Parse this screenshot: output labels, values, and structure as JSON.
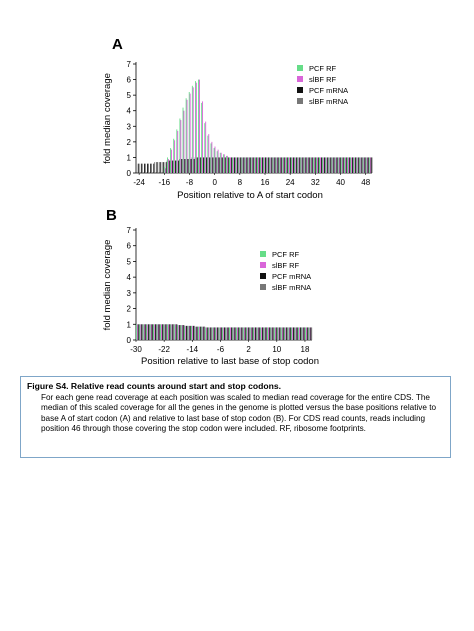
{
  "figure": {
    "caption_title": "Figure S4. Relative read counts around start and stop codons.",
    "caption_body": "For each gene read coverage at each position was scaled to median read coverage for the entire CDS. The median of this scaled coverage for all the genes in the genome is plotted versus the base positions relative to base A of start codon (A) and relative to last base of stop codon (B).  For CDS read counts, reads including position 46 through those covering the stop codon were included. RF, ribosome footprints."
  },
  "colors": {
    "pcf_rf": "#66dd88",
    "slbf_rf": "#d966d9",
    "pcf_mrna": "#111111",
    "slbf_mrna": "#777777"
  },
  "chart_data": [
    {
      "panel": "A",
      "type": "bar",
      "xlabel": "Position relative  to A of start codon",
      "ylabel": "fold median coverage",
      "ylim": [
        0,
        7
      ],
      "yticks": [
        0,
        1,
        2,
        3,
        4,
        5,
        6,
        7
      ],
      "x_start": -25,
      "x_end": 50,
      "x_step": 3,
      "xticks": [
        -24,
        -16,
        -8,
        0,
        8,
        16,
        24,
        32,
        40,
        48
      ],
      "legend_position": "top-right",
      "series": [
        {
          "name": "PCF RF",
          "values": [
            0,
            0,
            0,
            0,
            0,
            0,
            0,
            0,
            0,
            0.4,
            1.0,
            1.6,
            2.2,
            2.8,
            3.5,
            4.2,
            4.8,
            5.2,
            5.6,
            5.9,
            6.0,
            4.5,
            3.2,
            2.4,
            1.9,
            1.6,
            1.4,
            1.3,
            1.2,
            1.1,
            1.0,
            1.0,
            1.0,
            1.0,
            1.0,
            1.0,
            1.0,
            1.0,
            1.0,
            1.0,
            1.0,
            1.0,
            1.0,
            1.0,
            1.0,
            1.0,
            1.0,
            1.0,
            1.0,
            1.0,
            1.0,
            1.0,
            1.0,
            1.0,
            1.0,
            1.0,
            1.0,
            1.0,
            1.0,
            1.0,
            1.0,
            1.0,
            1.0,
            1.0,
            1.0,
            1.0,
            1.0,
            1.0,
            1.0,
            1.0,
            1.0,
            1.0,
            1.0,
            1.0,
            1.0,
            1.0
          ]
        },
        {
          "name": "slBF RF",
          "values": [
            0,
            0,
            0,
            0,
            0,
            0,
            0,
            0,
            0,
            0.3,
            0.9,
            1.5,
            2.1,
            2.7,
            3.4,
            4.0,
            4.7,
            5.1,
            5.5,
            5.8,
            6.0,
            4.6,
            3.3,
            2.5,
            2.0,
            1.7,
            1.5,
            1.3,
            1.2,
            1.1,
            1.0,
            1.0,
            1.0,
            1.0,
            1.0,
            1.0,
            1.0,
            1.0,
            1.0,
            1.0,
            1.0,
            1.0,
            1.0,
            1.0,
            1.0,
            1.0,
            1.0,
            1.0,
            1.0,
            1.0,
            1.0,
            1.0,
            1.0,
            1.0,
            1.0,
            1.0,
            1.0,
            1.0,
            1.0,
            1.0,
            1.0,
            1.0,
            1.0,
            1.0,
            1.0,
            1.0,
            1.0,
            1.0,
            1.0,
            1.0,
            1.0,
            1.0,
            1.0,
            1.0,
            1.0,
            1.0
          ]
        },
        {
          "name": "PCF mRNA",
          "values": [
            0.6,
            0.6,
            0.6,
            0.6,
            0.6,
            0.6,
            0.7,
            0.7,
            0.7,
            0.7,
            0.8,
            0.8,
            0.8,
            0.8,
            0.9,
            0.9,
            0.9,
            0.9,
            0.9,
            1.0,
            1.0,
            1.0,
            1.0,
            1.0,
            1.0,
            1.0,
            1.0,
            1.0,
            1.0,
            1.0,
            1.0,
            1.0,
            1.0,
            1.0,
            1.0,
            1.0,
            1.0,
            1.0,
            1.0,
            1.0,
            1.0,
            1.0,
            1.0,
            1.0,
            1.0,
            1.0,
            1.0,
            1.0,
            1.0,
            1.0,
            1.0,
            1.0,
            1.0,
            1.0,
            1.0,
            1.0,
            1.0,
            1.0,
            1.0,
            1.0,
            1.0,
            1.0,
            1.0,
            1.0,
            1.0,
            1.0,
            1.0,
            1.0,
            1.0,
            1.0,
            1.0,
            1.0,
            1.0,
            1.0,
            1.0,
            1.0
          ]
        },
        {
          "name": "slBF mRNA",
          "values": [
            0.6,
            0.6,
            0.6,
            0.6,
            0.6,
            0.7,
            0.7,
            0.7,
            0.7,
            0.8,
            0.8,
            0.8,
            0.8,
            0.9,
            0.9,
            0.9,
            0.9,
            1.0,
            1.0,
            1.0,
            1.0,
            1.0,
            1.0,
            1.0,
            1.0,
            1.0,
            1.0,
            1.0,
            1.0,
            1.0,
            1.0,
            1.0,
            1.0,
            1.0,
            1.0,
            1.0,
            1.0,
            1.0,
            1.0,
            1.0,
            1.0,
            1.0,
            1.0,
            1.0,
            1.0,
            1.0,
            1.0,
            1.0,
            1.0,
            1.0,
            1.0,
            1.0,
            1.0,
            1.0,
            1.0,
            1.0,
            1.0,
            1.0,
            1.0,
            1.0,
            1.0,
            1.0,
            1.0,
            1.0,
            1.0,
            1.0,
            1.0,
            1.0,
            1.0,
            1.0,
            1.0,
            1.0,
            1.0,
            1.0,
            1.0,
            1.0
          ]
        }
      ]
    },
    {
      "panel": "B",
      "type": "bar",
      "xlabel": "Position relative to last base of stop codon",
      "ylabel": "fold median coverage",
      "ylim": [
        0,
        7
      ],
      "yticks": [
        0,
        1,
        2,
        3,
        4,
        5,
        6,
        7
      ],
      "x_start": -30,
      "x_end": 20,
      "x_step": 2,
      "xticks": [
        -30,
        -22,
        -14,
        -6,
        2,
        10,
        18
      ],
      "legend_position": "top-right",
      "series": [
        {
          "name": "PCF RF",
          "values": [
            1.0,
            1.0,
            1.0,
            1.0,
            1.0,
            1.0,
            1.0,
            1.0,
            1.0,
            1.0,
            1.0,
            1.0,
            0.95,
            0.95,
            0.9,
            0.9,
            0.9,
            0.85,
            0.85,
            0.85,
            0.8,
            0.8,
            0.8,
            0.8,
            0.8,
            0.8,
            0.8,
            0.8,
            0.8,
            0.8,
            0.8,
            0.8,
            0.8,
            0.8,
            0.8,
            0.8,
            0.8,
            0.8,
            0.8,
            0.8,
            0.8,
            0.8,
            0.8,
            0.8,
            0.8,
            0.8,
            0.8,
            0.8,
            0.8,
            0.8,
            0.8
          ]
        },
        {
          "name": "slBF RF",
          "values": [
            1.0,
            1.0,
            1.0,
            1.0,
            1.0,
            1.0,
            1.0,
            1.0,
            1.0,
            1.0,
            1.0,
            1.0,
            0.95,
            0.95,
            0.9,
            0.9,
            0.9,
            0.85,
            0.85,
            0.85,
            0.8,
            0.8,
            0.8,
            0.8,
            0.8,
            0.8,
            0.8,
            0.8,
            0.8,
            0.8,
            0.8,
            0.8,
            0.8,
            0.8,
            0.8,
            0.8,
            0.8,
            0.8,
            0.8,
            0.8,
            0.8,
            0.8,
            0.8,
            0.8,
            0.8,
            0.8,
            0.8,
            0.8,
            0.8,
            0.8,
            0.8
          ]
        },
        {
          "name": "PCF mRNA",
          "values": [
            1.0,
            1.0,
            1.0,
            1.0,
            1.0,
            1.0,
            1.0,
            1.0,
            1.0,
            1.0,
            1.0,
            1.0,
            0.95,
            0.95,
            0.9,
            0.9,
            0.9,
            0.85,
            0.85,
            0.85,
            0.8,
            0.8,
            0.8,
            0.8,
            0.8,
            0.8,
            0.8,
            0.8,
            0.8,
            0.8,
            0.8,
            0.8,
            0.8,
            0.8,
            0.8,
            0.8,
            0.8,
            0.8,
            0.8,
            0.8,
            0.8,
            0.8,
            0.8,
            0.8,
            0.8,
            0.8,
            0.8,
            0.8,
            0.8,
            0.8,
            0.8
          ]
        },
        {
          "name": "slBF mRNA",
          "values": [
            1.0,
            1.0,
            1.0,
            1.0,
            1.0,
            1.0,
            1.0,
            1.0,
            1.0,
            1.0,
            1.0,
            1.0,
            0.95,
            0.95,
            0.9,
            0.9,
            0.9,
            0.85,
            0.85,
            0.85,
            0.8,
            0.8,
            0.8,
            0.8,
            0.8,
            0.8,
            0.8,
            0.8,
            0.8,
            0.8,
            0.8,
            0.8,
            0.8,
            0.8,
            0.8,
            0.8,
            0.8,
            0.8,
            0.8,
            0.8,
            0.8,
            0.8,
            0.8,
            0.8,
            0.8,
            0.8,
            0.8,
            0.8,
            0.8,
            0.8,
            0.8
          ]
        }
      ]
    }
  ]
}
